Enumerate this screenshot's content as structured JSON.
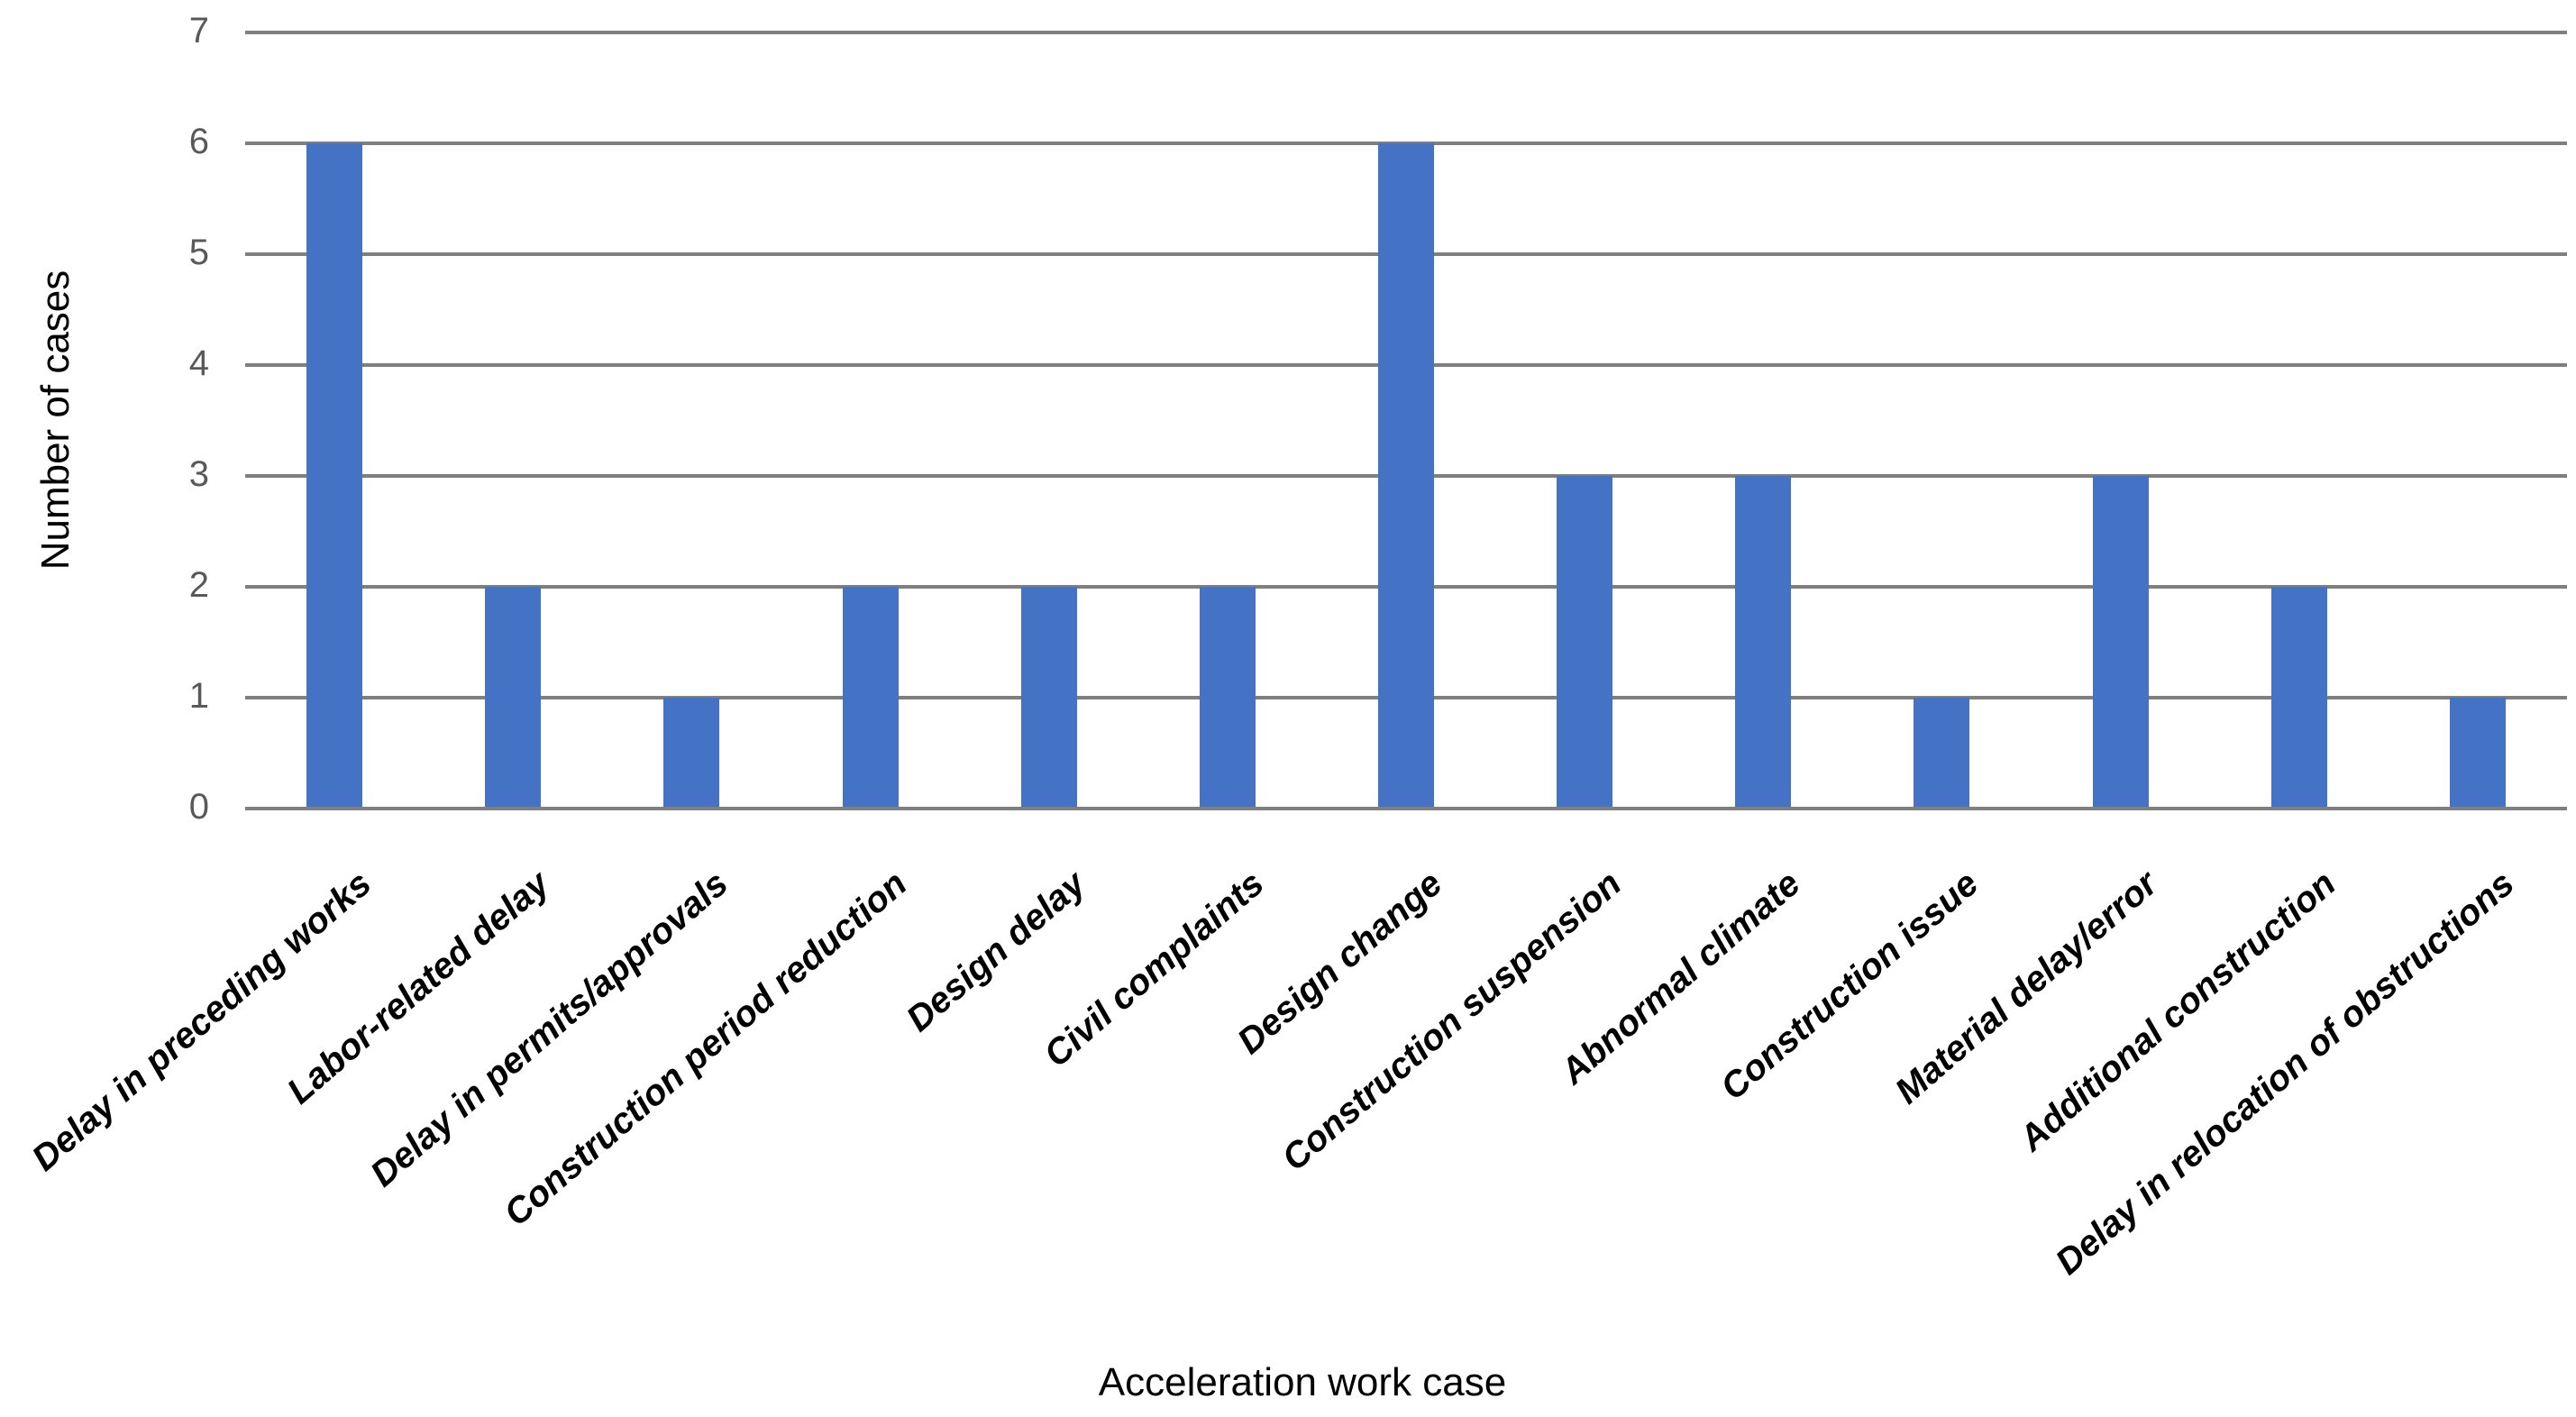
{
  "chart_data": {
    "type": "bar",
    "title": "",
    "categories": [
      "Delay in preceding works",
      "Labor-related delay",
      "Delay in permits/approvals",
      "Construction period reduction",
      "Design delay",
      "Civil complaints",
      "Design change",
      "Construction suspension",
      "Abnormal climate",
      "Construction issue",
      "Material delay/error",
      "Additional construction",
      "Delay in relocation of obstructions"
    ],
    "values": [
      6,
      2,
      1,
      2,
      2,
      2,
      6,
      3,
      3,
      1,
      3,
      2,
      1
    ],
    "xlabel": "Acceleration work case",
    "ylabel": "Number of cases",
    "ylim": [
      0,
      7
    ],
    "ytick_interval": 1,
    "yticks": [
      "0",
      "1",
      "2",
      "3",
      "4",
      "5",
      "6",
      "7"
    ],
    "grid": true,
    "legend": "none",
    "bar_color": "#4472C4",
    "gridline_color": "#7F7F7F",
    "tick_label_color": "#595959",
    "category_label_rotation_deg": -41
  }
}
